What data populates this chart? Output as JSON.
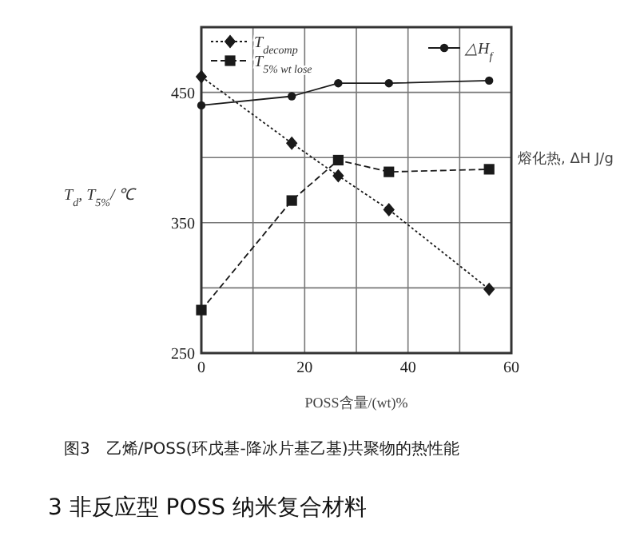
{
  "chart_data": {
    "type": "line",
    "x": [
      0,
      17.5,
      26.5,
      36.3,
      55.7
    ],
    "series": [
      {
        "name": "T$_{decomp}$",
        "color": "#1a1a1a",
        "marker": "diamond",
        "line_style": "dotted",
        "values": [
          462,
          411,
          386,
          360,
          299
        ]
      },
      {
        "name": "T$_{5% wt lose}$",
        "color": "#1a1a1a",
        "marker": "square",
        "line_style": "dashed",
        "values": [
          283,
          367,
          398,
          389,
          391
        ]
      },
      {
        "name": "△H$_{f}$",
        "color": "#1a1a1a",
        "marker": "circle",
        "line_style": "solid",
        "values": [
          440,
          447,
          457,
          457,
          459
        ]
      }
    ],
    "xlim": [
      0,
      60
    ],
    "ylim": [
      250,
      500
    ],
    "xticks": [
      0,
      {
        "value": 10,
        "label": null
      },
      20,
      {
        "value": 30,
        "label": null
      },
      40,
      {
        "value": 50,
        "label": null
      },
      60
    ],
    "yticks": [
      250,
      {
        "value": 300,
        "label": null
      },
      350,
      {
        "value": 400,
        "label": null
      },
      450
    ],
    "grid": true,
    "xlabel": "POSS含量/(wt)%",
    "ylabel": "T$_{d}$, T$_{5%}$/ ℃",
    "annotations": [
      "熔化热, ΔH J/g",
      "图3　乙烯/POSS(环戊基-降冰片基乙基)共聚物的热性能",
      "3 非反应型 POSS 纳米复合材料"
    ],
    "legend": "top"
  }
}
